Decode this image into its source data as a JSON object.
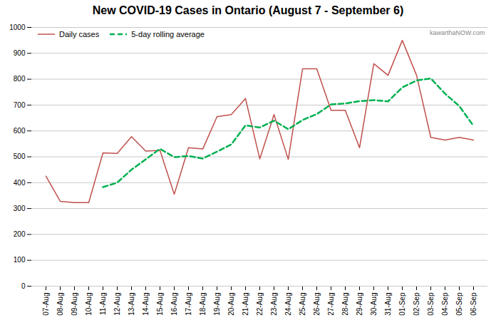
{
  "chart_data": {
    "type": "line",
    "title": "New COVID-19 Cases in Ontario (August 7 - September 6)",
    "annotations": [
      "kawarthaNOW.com"
    ],
    "categories": [
      "07-Aug",
      "08-Aug",
      "09-Aug",
      "10-Aug",
      "11-Aug",
      "12-Aug",
      "13-Aug",
      "14-Aug",
      "15-Aug",
      "16-Aug",
      "17-Aug",
      "18-Aug",
      "19-Aug",
      "20-Aug",
      "21-Aug",
      "22-Aug",
      "23-Aug",
      "24-Aug",
      "25-Aug",
      "26-Aug",
      "27-Aug",
      "28-Aug",
      "29-Aug",
      "30-Aug",
      "31-Aug",
      "01-Sep",
      "02-Sep",
      "03-Sep",
      "04-Sep",
      "05-Sep",
      "06-Sep"
    ],
    "series": [
      {
        "name": "Daily cases",
        "color": "#c0504d",
        "line_style": "solid",
        "values": [
          425,
          328,
          323,
          323,
          515,
          513,
          578,
          522,
          525,
          355,
          535,
          530,
          655,
          663,
          725,
          492,
          663,
          490,
          840,
          840,
          680,
          680,
          535,
          860,
          815,
          950,
          815,
          575,
          565,
          575,
          565
        ]
      },
      {
        "name": "5-day rolling average",
        "color": "#00b050",
        "line_style": "dashed",
        "values": [
          null,
          null,
          null,
          null,
          382.8,
          400.4,
          450.4,
          490.2,
          530.6,
          498.6,
          503,
          493.4,
          520,
          547.6,
          621.6,
          613,
          639.6,
          606.6,
          642,
          665,
          702.6,
          706,
          715,
          719,
          714,
          768,
          795,
          803,
          744,
          696,
          619
        ]
      }
    ],
    "ylim": [
      0,
      1000
    ],
    "yticks": [
      0,
      100,
      200,
      300,
      400,
      500,
      600,
      700,
      800,
      900,
      1000
    ],
    "grid": true,
    "legend": "upper left"
  }
}
